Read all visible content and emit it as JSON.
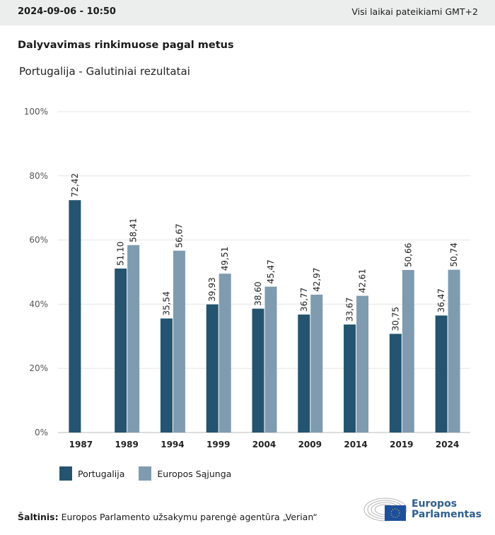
{
  "header": {
    "timestamp": "2024-09-06 - 10:50",
    "timezone_note": "Visi laikai pateikiami GMT+2"
  },
  "title": "Dalyvavimas rinkimuose pagal metus",
  "subtitle": "Portugalija - Galutiniai rezultatai",
  "chart_data": {
    "type": "bar",
    "categories": [
      "1987",
      "1989",
      "1994",
      "1999",
      "2004",
      "2009",
      "2014",
      "2019",
      "2024"
    ],
    "series": [
      {
        "name": "Portugalija",
        "color": "#24546f",
        "values": [
          72.42,
          51.1,
          35.54,
          39.93,
          38.6,
          36.77,
          33.67,
          30.75,
          36.47
        ],
        "labels": [
          "72,42",
          "51,10",
          "35,54",
          "39,93",
          "38,60",
          "36,77",
          "33,67",
          "30,75",
          "36,47"
        ]
      },
      {
        "name": "Europos Sąjunga",
        "color": "#7f9bb0",
        "values": [
          null,
          58.41,
          56.67,
          49.51,
          45.47,
          42.97,
          42.61,
          50.66,
          50.74
        ],
        "labels": [
          "",
          "58,41",
          "56,67",
          "49,51",
          "45,47",
          "42,97",
          "42,61",
          "50,66",
          "50,74"
        ]
      }
    ],
    "ylim": [
      0,
      100
    ],
    "yticks": [
      "0%",
      "20%",
      "40%",
      "60%",
      "80%",
      "100%"
    ],
    "grid": true,
    "legend": "bottom-left"
  },
  "legend": {
    "items": [
      "Portugalija",
      "Europos Sąjunga"
    ]
  },
  "source": {
    "label": "Šaltinis:",
    "text": "Europos Parlamento užsakymu parengė agentūra „Verian“"
  },
  "logo": {
    "line1": "Europos",
    "line2": "Parlamentas"
  }
}
